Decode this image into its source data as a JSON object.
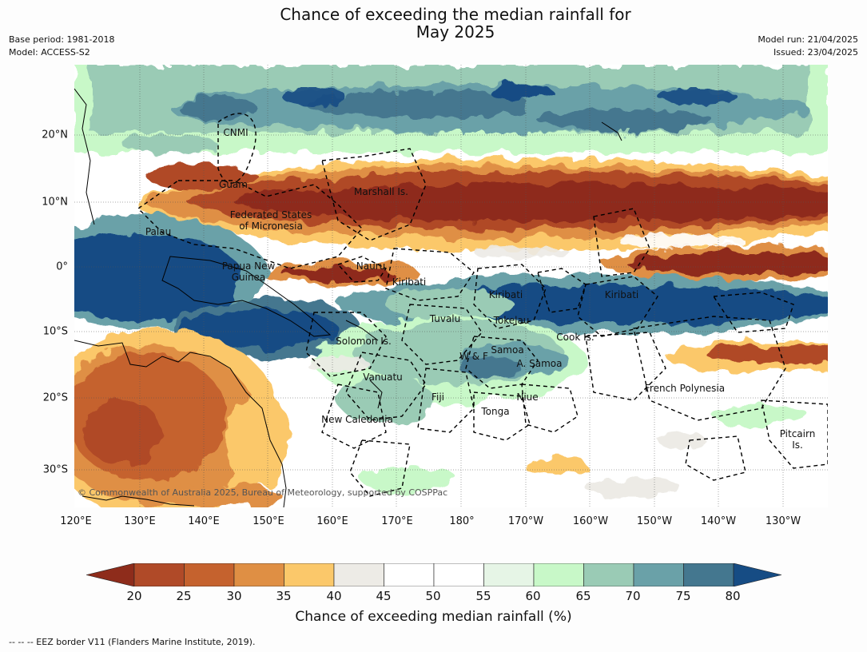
{
  "header": {
    "title_line1": "Chance of exceeding the median rainfall for",
    "title_line2": "May 2025",
    "base_period": "Base period: 1981-2018",
    "model": "Model: ACCESS-S2",
    "model_run": "Model run: 21/04/2025",
    "issued": "Issued: 23/04/2025"
  },
  "map": {
    "lat_labels": [
      "20°N",
      "10°N",
      "0°",
      "10°S",
      "20°S",
      "30°S"
    ],
    "lon_labels": [
      "120°E",
      "130°E",
      "140°E",
      "150°E",
      "160°E",
      "170°E",
      "180°",
      "170°W",
      "160°W",
      "150°W",
      "140°W",
      "130°W"
    ],
    "regions": {
      "cnmi": "CNMI",
      "guam": "Guam",
      "marshall": "Marshall Is.",
      "fsm_1": "Federated States",
      "fsm_2": "of Micronesia",
      "palau": "Palau",
      "nauru": "Nauru",
      "png_1": "Papua New",
      "png_2": "Guinea",
      "kiribati_w": "Kiribati",
      "kiribati_c": "Kiribati",
      "kiribati_e": "Kiribati",
      "tuvalu": "Tuvalu",
      "tokelau": "Tokelau",
      "solomon": "Solomon Is.",
      "wf": "W & F",
      "samoa": "Samoa",
      "asamoa": "A. Samoa",
      "cook": "Cook Is.",
      "vanuatu": "Vanuatu",
      "fiji": "Fiji",
      "niue": "Niue",
      "french_poly": "French Polynesia",
      "tonga": "Tonga",
      "new_caledonia": "New Caledonia",
      "pitcairn_1": "Pitcairn",
      "pitcairn_2": "Is."
    },
    "copyright": "© Commonwealth of Australia 2025, Bureau of Meteorology, supported by COSPPac"
  },
  "colorbar": {
    "ticks": [
      "20",
      "25",
      "30",
      "35",
      "40",
      "45",
      "50",
      "55",
      "60",
      "65",
      "70",
      "75",
      "80"
    ],
    "colors": [
      "#8e2c1b",
      "#b04a28",
      "#c5622e",
      "#df8f44",
      "#fbc86a",
      "#edebe6",
      "#ffffff",
      "#ffffff",
      "#e6f5e6",
      "#c8f8c8",
      "#9acbb5",
      "#6aa1a8",
      "#44778f",
      "#164c84"
    ],
    "label": "Chance of exceeding median rainfall (%)"
  },
  "footer": {
    "eez_note": "--  --  -- EEZ border V11 (Flanders Marine Institute, 2019)."
  }
}
